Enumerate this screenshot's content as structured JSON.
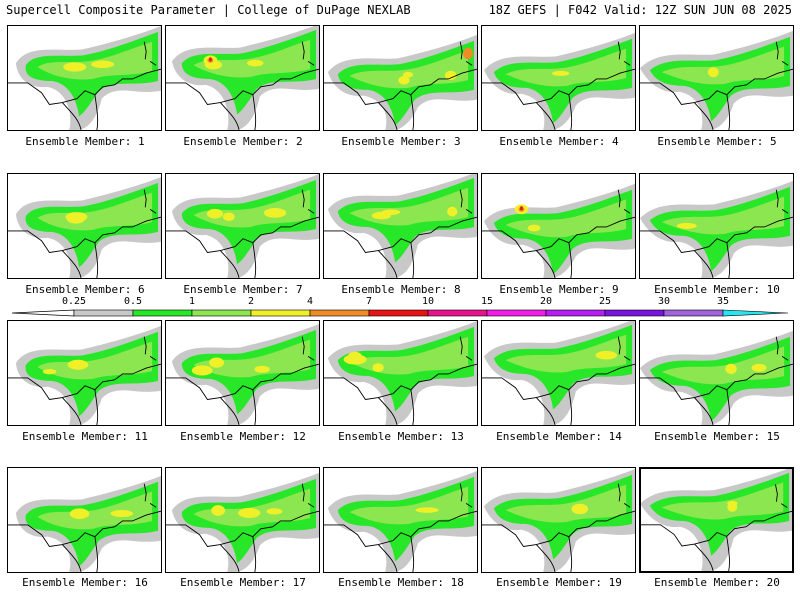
{
  "header": {
    "left": "Supercell Composite Parameter | College of DuPage NEXLAB",
    "right": "18Z GEFS | F042 Valid: 12Z SUN JUN 08 2025"
  },
  "members": [
    {
      "label": "Ensemble Member: 1"
    },
    {
      "label": "Ensemble Member: 2"
    },
    {
      "label": "Ensemble Member: 3"
    },
    {
      "label": "Ensemble Member: 4"
    },
    {
      "label": "Ensemble Member: 5"
    },
    {
      "label": "Ensemble Member: 6"
    },
    {
      "label": "Ensemble Member: 7"
    },
    {
      "label": "Ensemble Member: 8"
    },
    {
      "label": "Ensemble Member: 9"
    },
    {
      "label": "Ensemble Member: 10"
    },
    {
      "label": "Ensemble Member: 11"
    },
    {
      "label": "Ensemble Member: 12"
    },
    {
      "label": "Ensemble Member: 13"
    },
    {
      "label": "Ensemble Member: 14"
    },
    {
      "label": "Ensemble Member: 15"
    },
    {
      "label": "Ensemble Member: 16"
    },
    {
      "label": "Ensemble Member: 17"
    },
    {
      "label": "Ensemble Member: 18"
    },
    {
      "label": "Ensemble Member: 19"
    },
    {
      "label": "Ensemble Member: 20",
      "selected": true
    }
  ],
  "colorbar": {
    "levels": [
      "0.25",
      "0.5",
      "1",
      "2",
      "4",
      "7",
      "10",
      "15",
      "20",
      "25",
      "30",
      "35"
    ],
    "colors": [
      "#c8c8c8",
      "#28e628",
      "#8ce650",
      "#f0f028",
      "#f08c28",
      "#e61414",
      "#e6148c",
      "#f01ee6",
      "#b41ef0",
      "#7814dc",
      "#a064dc",
      "#28e6f0"
    ]
  },
  "palette": {
    "gray": "#c8c8c8",
    "green": "#28e628",
    "lightgreen": "#8ce650",
    "yellow": "#f0f028",
    "orange": "#f08c28",
    "red": "#e61414"
  }
}
